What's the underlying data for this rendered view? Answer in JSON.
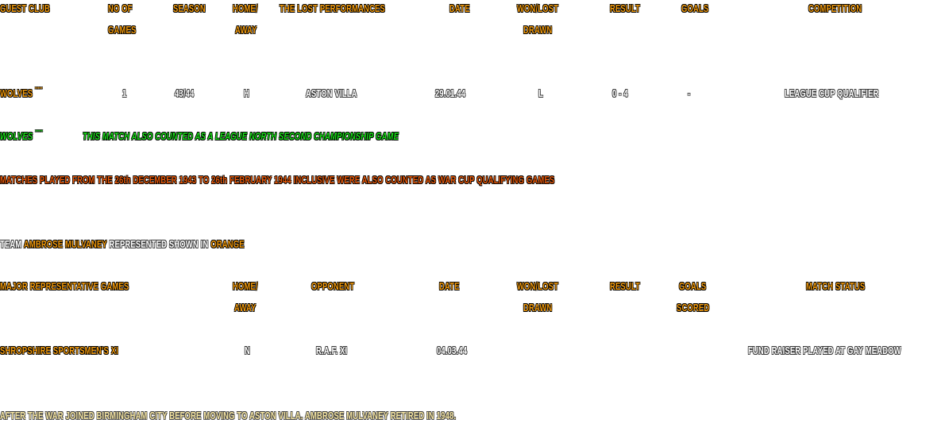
{
  "guest_table": {
    "headers": [
      "GUEST CLUB",
      "NO OF",
      "GAMES",
      "SEASON",
      "HOME/",
      "AWAY",
      "THE LOST PERFORMANCES",
      "DATE",
      "WON/LOST",
      "DRAWN",
      "RESULT",
      "GOALS",
      "COMPETITION"
    ],
    "row": {
      "club": "WOLVES",
      "marker": "*****",
      "games": "1",
      "season": "43/44",
      "home_away": "H",
      "opponent": "ASTON VILLA",
      "date": "29.01.44",
      "won_lost": "L",
      "result": "0 - 4",
      "goals": "-",
      "competition": "LEAGUE CUP QUALIFIER"
    }
  },
  "notes": {
    "green_club": "WOLVES",
    "green_marker": "*****",
    "green_text": "THIS MATCH ALSO COUNTED AS A LEAGUE NORTH SECOND CHAMPIONSHIP GAME",
    "red_text": "MATCHES PLAYED FROM THE 26th DECEMBER 1943 TO 26th FEBRUARY 1944 INCLUSIVE WERE ALSO COUNTED AS WAR CUP QUALIFYING GAMES",
    "team_prefix": "TEAM",
    "team_name": "AMBROSE MULVANEY",
    "team_mid": "REPRESENTED SHOWN IN",
    "team_color": "ORANGE"
  },
  "rep_table": {
    "headers": [
      "MAJOR REPRESENTATIVE GAMES",
      "HOME/",
      "AWAY",
      "OPPONENT",
      "DATE",
      "WON/LOST",
      "DRAWN",
      "RESULT",
      "GOALS",
      "SCORED",
      "MATCH STATUS"
    ],
    "row": {
      "team": "SHROPSHIRE SPORTSMEN'S XI",
      "home_away": "N",
      "opponent": "R.A.F. XI",
      "date": "04.03.44",
      "status": "FUND RAISER PLAYED AT GAY MEADOW"
    }
  },
  "footer": "AFTER THE WAR JOINED BIRMINGHAM CITY BEFORE MOVING TO ASTON VILLA. AMBROSE MULVANEY RETIRED IN 1948."
}
